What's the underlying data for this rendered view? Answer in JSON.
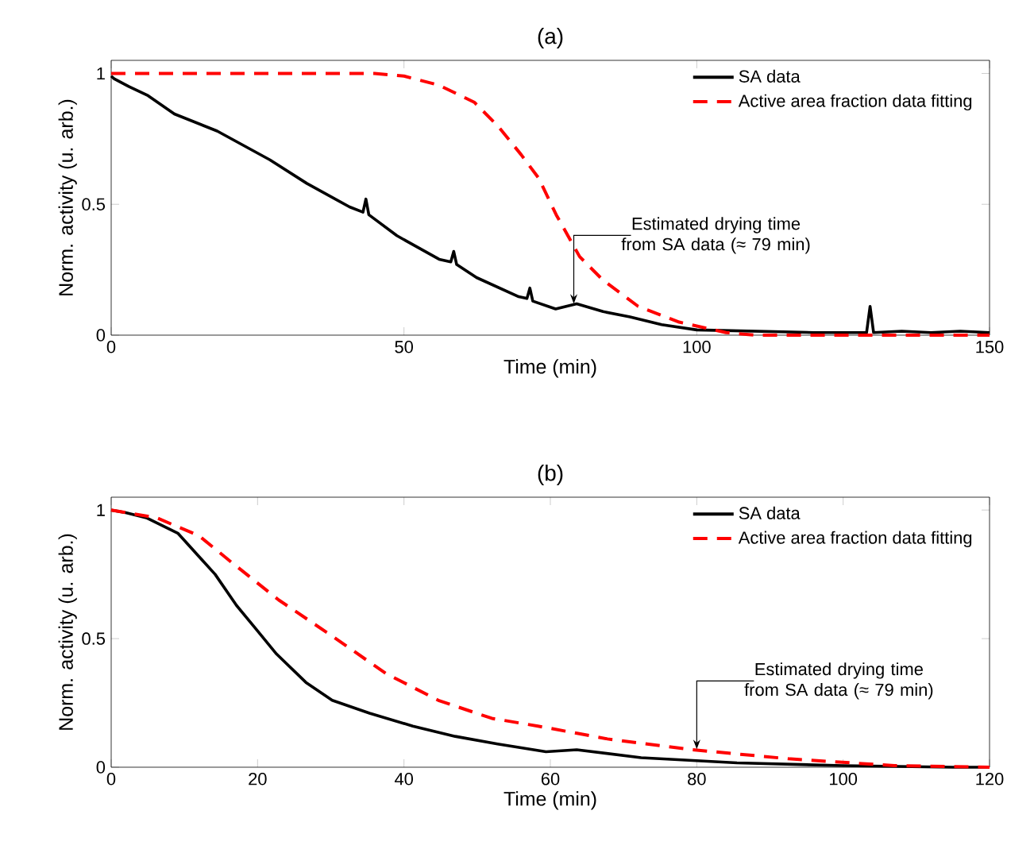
{
  "chart_data": [
    {
      "type": "line",
      "title": "(a)",
      "xlabel": "Time (min)",
      "ylabel": "Norm. activity (u. arb.)",
      "xlim": [
        0,
        150
      ],
      "ylim": [
        0,
        1.05
      ],
      "xticks": [
        0,
        50,
        100,
        150
      ],
      "yticks": [
        0,
        0.5,
        1
      ],
      "legend": "top right",
      "annotations": [
        {
          "text": "Estimated drying time from SA data (≈ 79 min)",
          "x": 79,
          "y": 0.12
        }
      ],
      "series": [
        {
          "name": "SA data",
          "color": "#000000",
          "line_style": "solid",
          "x": [
            0,
            0.5,
            3,
            6.3,
            10.8,
            18.1,
            27.1,
            33.4,
            40.7,
            43,
            43.5,
            44,
            48.8,
            56,
            58,
            58.5,
            59,
            62.4,
            69.6,
            71,
            71.5,
            72,
            75.9,
            79.5,
            84,
            88.6,
            94,
            100,
            110,
            120,
            129,
            129.6,
            130.2,
            135,
            140,
            145,
            150
          ],
          "values": [
            0.99,
            0.98,
            0.95,
            0.915,
            0.845,
            0.78,
            0.67,
            0.58,
            0.49,
            0.47,
            0.52,
            0.46,
            0.38,
            0.29,
            0.28,
            0.32,
            0.27,
            0.22,
            0.147,
            0.14,
            0.18,
            0.13,
            0.1,
            0.12,
            0.09,
            0.07,
            0.04,
            0.02,
            0.015,
            0.01,
            0.01,
            0.11,
            0.01,
            0.015,
            0.01,
            0.015,
            0.01
          ]
        },
        {
          "name": "Active area fraction data fitting",
          "color": "#ff0000",
          "line_style": "dashed",
          "x": [
            0,
            45,
            50,
            56,
            62,
            66,
            70,
            73,
            76,
            80,
            84,
            90,
            97,
            105,
            110,
            150
          ],
          "values": [
            1,
            1,
            0.99,
            0.955,
            0.89,
            0.8,
            0.69,
            0.6,
            0.46,
            0.3,
            0.21,
            0.11,
            0.05,
            0.01,
            0,
            0
          ]
        }
      ]
    },
    {
      "type": "line",
      "title": "(b)",
      "xlabel": "Time (min)",
      "ylabel": "Norm. activity (u. arb.)",
      "xlim": [
        0,
        120
      ],
      "ylim": [
        0,
        1.05
      ],
      "xticks": [
        0,
        20,
        40,
        60,
        80,
        100,
        120
      ],
      "yticks": [
        0,
        0.5,
        1
      ],
      "legend": "top right",
      "annotations": [
        {
          "text": "Estimated drying time from SA data (≈ 79 min)",
          "x": 80,
          "y": 0.07
        }
      ],
      "series": [
        {
          "name": "SA data",
          "color": "#000000",
          "line_style": "solid",
          "x": [
            0,
            2,
            4.8,
            9.1,
            14.2,
            17.1,
            20,
            22.6,
            26.6,
            30.2,
            35.3,
            41.2,
            47,
            52.8,
            59.4,
            63.6,
            72.4,
            85.5,
            100,
            115,
            120
          ],
          "values": [
            1,
            0.99,
            0.97,
            0.91,
            0.75,
            0.63,
            0.53,
            0.44,
            0.33,
            0.26,
            0.21,
            0.16,
            0.12,
            0.09,
            0.06,
            0.068,
            0.037,
            0.017,
            0.006,
            0,
            0
          ]
        },
        {
          "name": "Active area fraction data fitting",
          "color": "#ff0000",
          "line_style": "dashed",
          "x": [
            0,
            6.2,
            12,
            16.3,
            22.9,
            30.2,
            37.5,
            44.7,
            52,
            58.3,
            67.8,
            79.4,
            92.5,
            107,
            120
          ],
          "values": [
            1,
            0.97,
            0.9,
            0.8,
            0.65,
            0.51,
            0.365,
            0.26,
            0.19,
            0.16,
            0.11,
            0.068,
            0.033,
            0.006,
            0
          ]
        }
      ]
    }
  ]
}
